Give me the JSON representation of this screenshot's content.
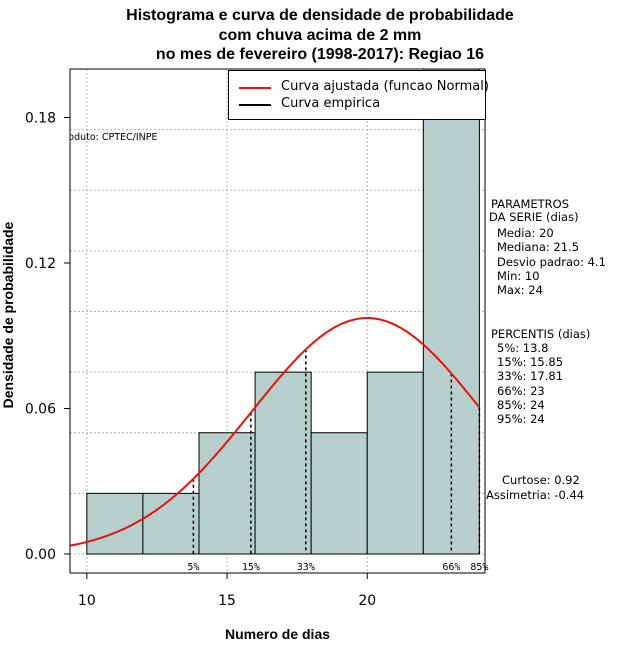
{
  "title_lines": [
    "Histograma e curva de densidade de probabilidade",
    "com chuva acima de 2 mm",
    "no mes de fevereiro (1998-2017): Regiao 16"
  ],
  "produto": "Produto: CPTEC/INPE",
  "legend": {
    "fitted_label": "Curva ajustada (funcao Normal)",
    "empirical_label": "Curva empirica"
  },
  "parametros": {
    "header1": "PARAMETROS",
    "header2": "DA SERIE (dias)",
    "lines": [
      "Media: 20",
      "Mediana: 21.5",
      "Desvio padrao: 4.1",
      "Min: 10",
      "Max: 24"
    ]
  },
  "percentis": {
    "header": "PERCENTIS (dias)",
    "lines": [
      "5%: 13.8",
      "15%: 15.85",
      "33%: 17.81",
      "66%: 23",
      "85%: 24",
      "95%: 24"
    ]
  },
  "shape": {
    "curtose": "Curtose: 0.92",
    "assimetria": "Assimetria: -0.44"
  },
  "chart_data": {
    "type": "bar",
    "title": "Histograma e curva de densidade de probabilidade com chuva acima de 2 mm no mes de fevereiro (1998-2017): Regiao 16",
    "xlabel": "Numero de dias",
    "ylabel": "Densidade de probabilidade",
    "xlim": [
      9.4,
      24.2
    ],
    "ylim": [
      0,
      0.2
    ],
    "x_ticks": [
      10,
      15,
      20
    ],
    "y_ticks": [
      0.0,
      0.06,
      0.12,
      0.18
    ],
    "y_tick_labels": [
      "0.00",
      "0.06",
      "0.12",
      "0.18"
    ],
    "grid": true,
    "bar_color": "#b7cfcd",
    "fit_color": "#e8120c",
    "bins": [
      {
        "x0": 10,
        "x1": 12,
        "density": 0.025
      },
      {
        "x0": 12,
        "x1": 14,
        "density": 0.025
      },
      {
        "x0": 14,
        "x1": 16,
        "density": 0.05
      },
      {
        "x0": 16,
        "x1": 18,
        "density": 0.075
      },
      {
        "x0": 18,
        "x1": 20,
        "density": 0.05
      },
      {
        "x0": 20,
        "x1": 22,
        "density": 0.075
      },
      {
        "x0": 22,
        "x1": 24,
        "density": 0.2
      }
    ],
    "normal_fit": {
      "mean": 20,
      "sd": 4.1
    },
    "percentile_markers": [
      {
        "label": "5%",
        "x": 13.8
      },
      {
        "label": "15%",
        "x": 15.85
      },
      {
        "label": "33%",
        "x": 17.81
      },
      {
        "label": "66%",
        "x": 23
      },
      {
        "label": "85%",
        "x": 24
      }
    ]
  }
}
